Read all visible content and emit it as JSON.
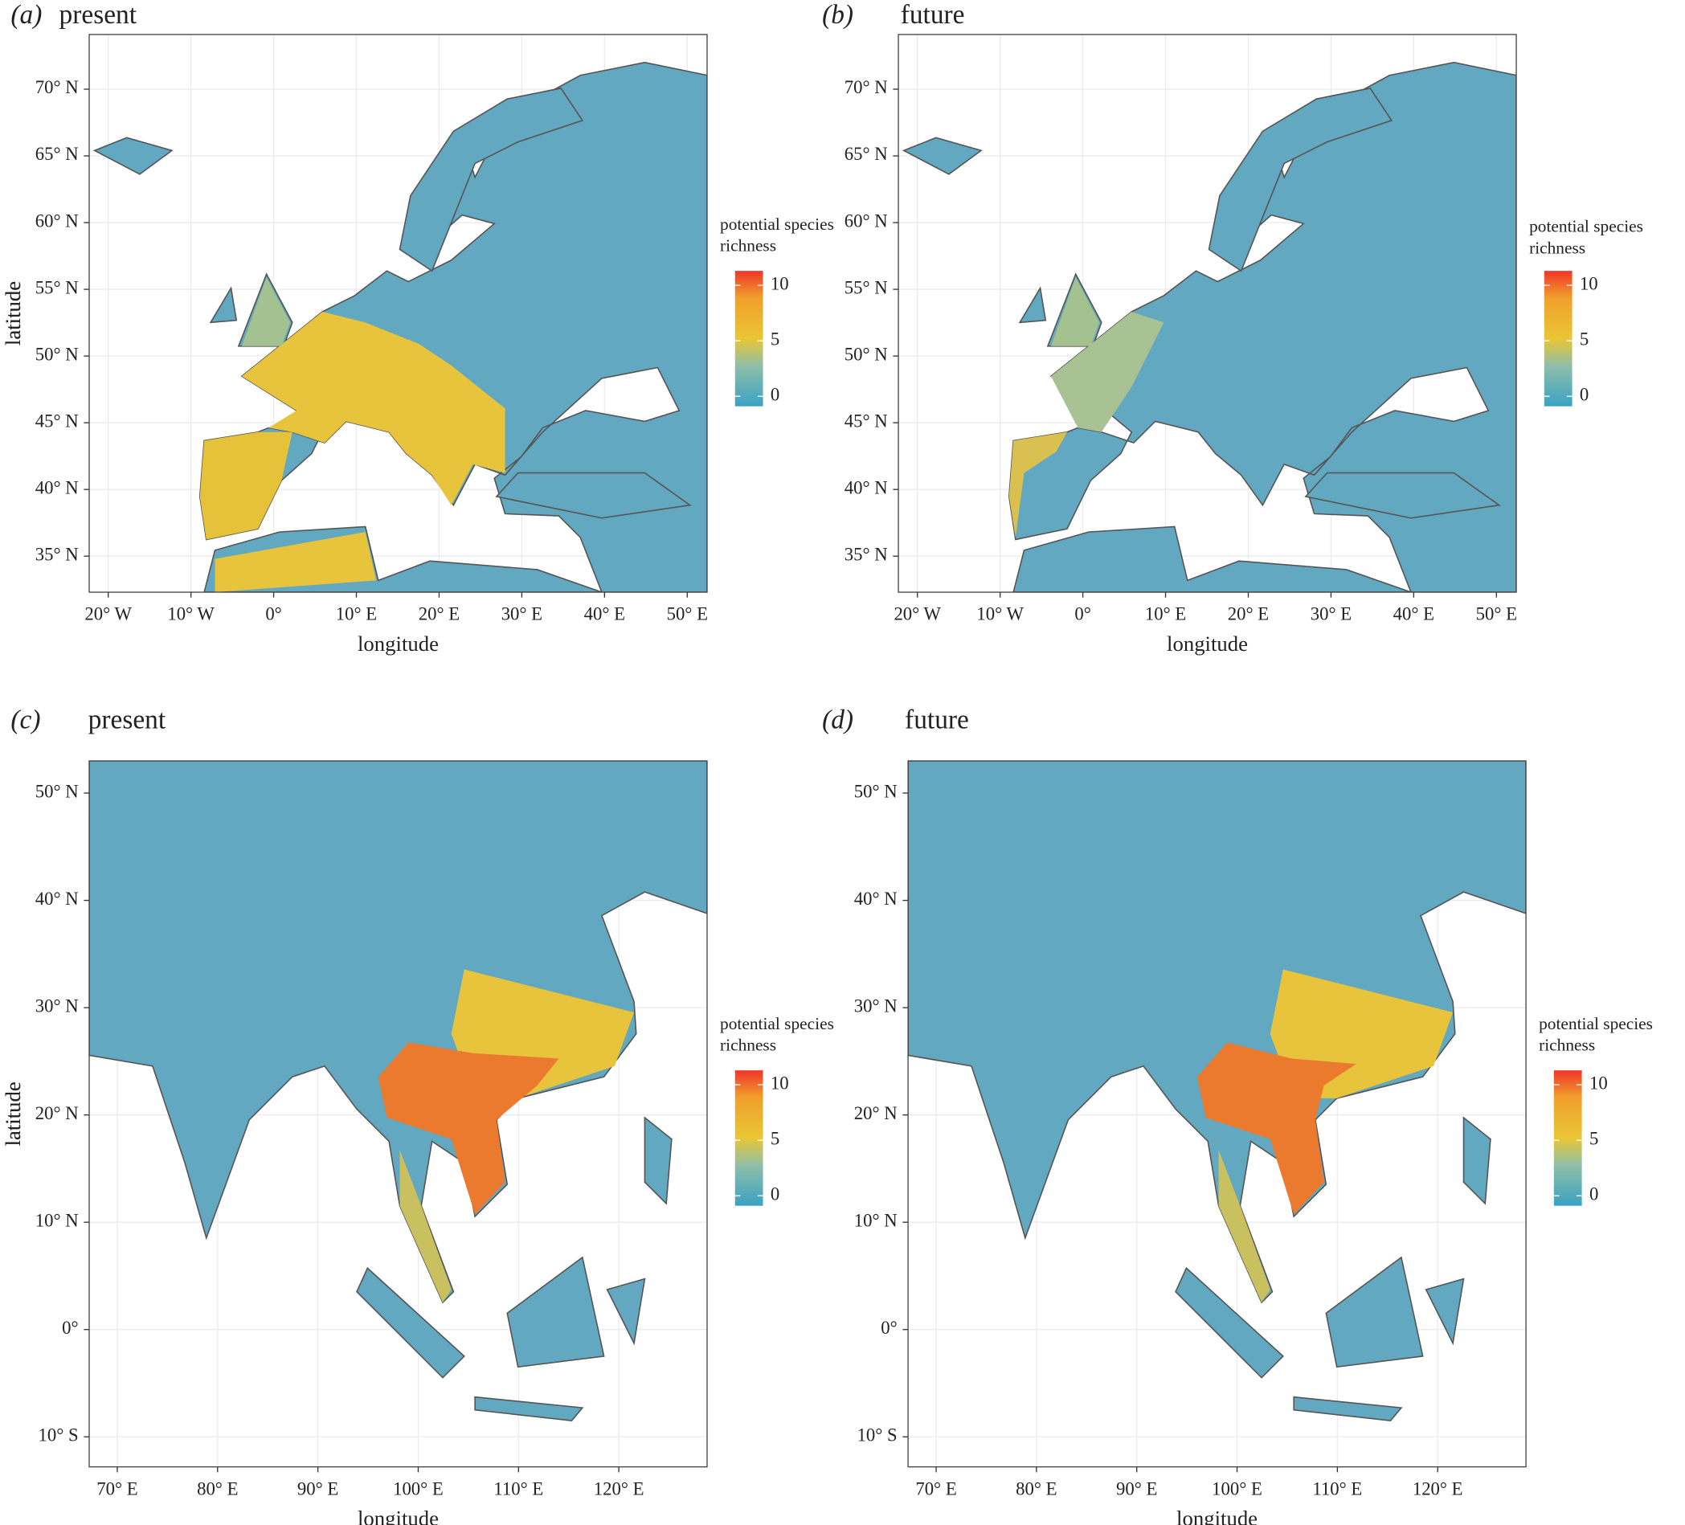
{
  "panels": [
    {
      "label": "(a)",
      "title": "present",
      "xlabel": "longitude",
      "ylabel": "latitude",
      "xlim": [
        -22.3,
        52.4
      ],
      "ylim": [
        32.3,
        74.1
      ],
      "xticks": [
        {
          "value": -20,
          "label": "20° W"
        },
        {
          "value": -10,
          "label": "10° W"
        },
        {
          "value": 0,
          "label": "0°"
        },
        {
          "value": 10,
          "label": "10° E"
        },
        {
          "value": 20,
          "label": "20° E"
        },
        {
          "value": 30,
          "label": "30° E"
        },
        {
          "value": 40,
          "label": "40° E"
        },
        {
          "value": 50,
          "label": "50° E"
        }
      ],
      "yticks": [
        {
          "value": 35,
          "label": "35° N"
        },
        {
          "value": 40,
          "label": "40° N"
        },
        {
          "value": 45,
          "label": "45° N"
        },
        {
          "value": 50,
          "label": "50° N"
        },
        {
          "value": 55,
          "label": "55° N"
        },
        {
          "value": 60,
          "label": "60° N"
        },
        {
          "value": 65,
          "label": "65° N"
        },
        {
          "value": 70,
          "label": "70° N"
        }
      ],
      "legend": {
        "title_lines": [
          "potential species",
          "richness"
        ],
        "clim": [
          -0.9,
          11.3
        ],
        "ticks": [
          0,
          5,
          10
        ]
      }
    },
    {
      "label": "(b)",
      "title": "future",
      "xlabel": "longitude",
      "ylabel": "latitude",
      "xlim": [
        -22.3,
        52.4
      ],
      "ylim": [
        32.3,
        74.1
      ],
      "xticks": [
        {
          "value": -20,
          "label": "20° W"
        },
        {
          "value": -10,
          "label": "10° W"
        },
        {
          "value": 0,
          "label": "0°"
        },
        {
          "value": 10,
          "label": "10° E"
        },
        {
          "value": 20,
          "label": "20° E"
        },
        {
          "value": 30,
          "label": "30° E"
        },
        {
          "value": 40,
          "label": "40° E"
        },
        {
          "value": 50,
          "label": "50° E"
        }
      ],
      "yticks": [
        {
          "value": 35,
          "label": "35° N"
        },
        {
          "value": 40,
          "label": "40° N"
        },
        {
          "value": 45,
          "label": "45° N"
        },
        {
          "value": 50,
          "label": "50° N"
        },
        {
          "value": 55,
          "label": "55° N"
        },
        {
          "value": 60,
          "label": "60° N"
        },
        {
          "value": 65,
          "label": "65° N"
        },
        {
          "value": 70,
          "label": "70° N"
        }
      ],
      "legend": {
        "title_lines": [
          "potential species",
          "richness"
        ],
        "clim": [
          -0.9,
          11.3
        ],
        "ticks": [
          0,
          5,
          10
        ]
      }
    },
    {
      "label": "(c)",
      "title": "present",
      "xlabel": "longitude",
      "ylabel": "latitude",
      "xlim": [
        67.2,
        128.8
      ],
      "ylim": [
        -12.8,
        53
      ],
      "xticks": [
        {
          "value": 70,
          "label": "70° E"
        },
        {
          "value": 80,
          "label": "80° E"
        },
        {
          "value": 90,
          "label": "90° E"
        },
        {
          "value": 100,
          "label": "100° E"
        },
        {
          "value": 110,
          "label": "110° E"
        },
        {
          "value": 120,
          "label": "120° E"
        }
      ],
      "yticks": [
        {
          "value": -10,
          "label": "10° S"
        },
        {
          "value": 0,
          "label": "0°"
        },
        {
          "value": 10,
          "label": "10° N"
        },
        {
          "value": 20,
          "label": "20° N"
        },
        {
          "value": 30,
          "label": "30° N"
        },
        {
          "value": 40,
          "label": "40° N"
        },
        {
          "value": 50,
          "label": "50° N"
        }
      ],
      "legend": {
        "title_lines": [
          "potential species",
          "richness"
        ],
        "clim": [
          -0.9,
          11.3
        ],
        "ticks": [
          0,
          5,
          10
        ]
      }
    },
    {
      "label": "(d)",
      "title": "future",
      "xlabel": "longitude",
      "ylabel": "latitude",
      "xlim": [
        67.2,
        128.8
      ],
      "ylim": [
        -12.8,
        53
      ],
      "xticks": [
        {
          "value": 70,
          "label": "70° E"
        },
        {
          "value": 80,
          "label": "80° E"
        },
        {
          "value": 90,
          "label": "90° E"
        },
        {
          "value": 100,
          "label": "100° E"
        },
        {
          "value": 110,
          "label": "110° E"
        },
        {
          "value": 120,
          "label": "120° E"
        }
      ],
      "yticks": [
        {
          "value": -10,
          "label": "10° S"
        },
        {
          "value": 0,
          "label": "0°"
        },
        {
          "value": 10,
          "label": "10° N"
        },
        {
          "value": 20,
          "label": "20° N"
        },
        {
          "value": 30,
          "label": "30° N"
        },
        {
          "value": 40,
          "label": "40° N"
        },
        {
          "value": 50,
          "label": "50° N"
        }
      ],
      "legend": {
        "title_lines": [
          "potential species",
          "richness"
        ],
        "clim": [
          -0.9,
          11.3
        ],
        "ticks": [
          0,
          5,
          10
        ]
      }
    }
  ]
}
